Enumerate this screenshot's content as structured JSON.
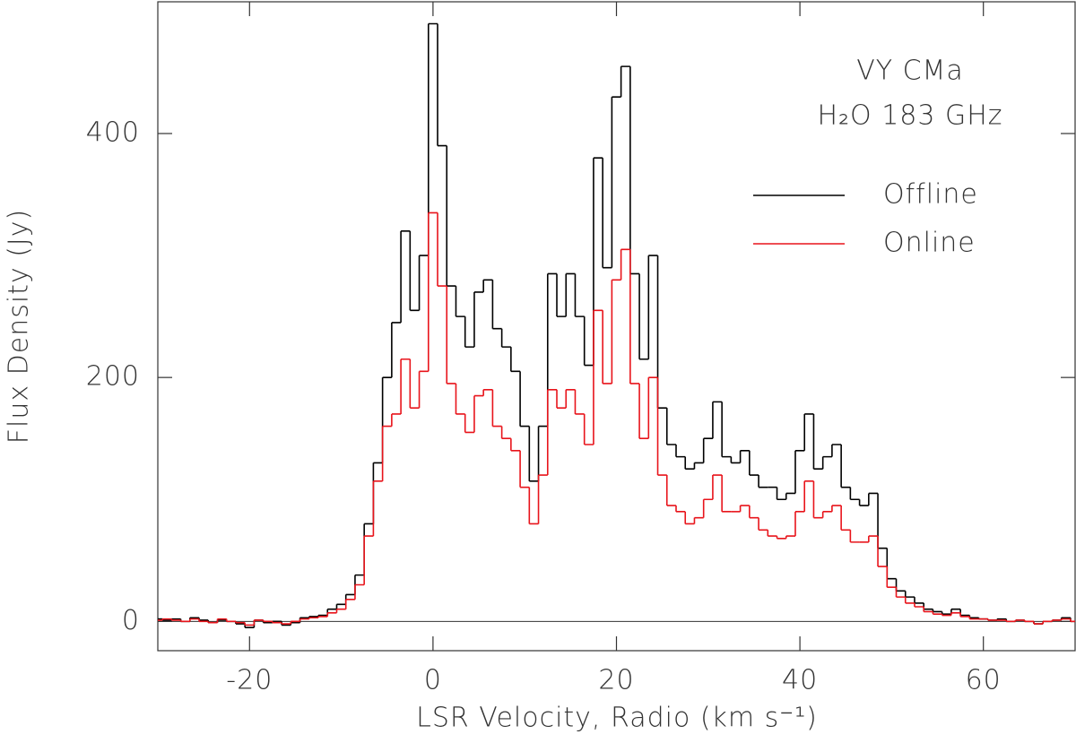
{
  "chart_data": {
    "type": "step",
    "annotations": [
      "VY CMa",
      "H₂O 183 GHz"
    ],
    "xlabel": "LSR Velocity, Radio (km s⁻¹)",
    "ylabel": "Flux Density (Jy)",
    "xlim": [
      -30,
      70
    ],
    "ylim": [
      -24,
      508
    ],
    "xticks": [
      -20,
      0,
      20,
      40,
      60
    ],
    "yticks": [
      0,
      200,
      400
    ],
    "legend": "upper right",
    "zero_line": true,
    "x": [
      -30,
      -29,
      -28,
      -27,
      -26,
      -25,
      -24,
      -23,
      -22,
      -21,
      -20,
      -19,
      -18,
      -17,
      -16,
      -15,
      -14,
      -13,
      -12,
      -11,
      -10,
      -9,
      -8,
      -7,
      -6,
      -5,
      -4,
      -3,
      -2,
      -1,
      0,
      1,
      2,
      3,
      4,
      5,
      6,
      7,
      8,
      9,
      10,
      11,
      12,
      13,
      14,
      15,
      16,
      17,
      18,
      19,
      20,
      21,
      22,
      23,
      24,
      25,
      26,
      27,
      28,
      29,
      30,
      31,
      32,
      33,
      34,
      35,
      36,
      37,
      38,
      39,
      40,
      41,
      42,
      43,
      44,
      45,
      46,
      47,
      48,
      49,
      50,
      51,
      52,
      53,
      54,
      55,
      56,
      57,
      58,
      59,
      60,
      61,
      62,
      63,
      64,
      65,
      66,
      67,
      68,
      69,
      70
    ],
    "series": [
      {
        "name": "Offline",
        "color": "#000000",
        "values": [
          2,
          1,
          2,
          0,
          3,
          1,
          -1,
          1,
          0,
          -2,
          -5,
          1,
          -1,
          0,
          -3,
          -1,
          3,
          4,
          5,
          10,
          14,
          22,
          38,
          80,
          130,
          200,
          245,
          320,
          255,
          300,
          490,
          390,
          275,
          250,
          225,
          270,
          280,
          240,
          225,
          205,
          160,
          115,
          160,
          285,
          250,
          285,
          250,
          210,
          380,
          290,
          430,
          455,
          285,
          215,
          300,
          175,
          145,
          135,
          125,
          130,
          150,
          180,
          135,
          130,
          140,
          120,
          110,
          110,
          100,
          105,
          140,
          170,
          125,
          135,
          145,
          110,
          100,
          95,
          105,
          60,
          35,
          25,
          20,
          15,
          10,
          8,
          6,
          10,
          5,
          3,
          2,
          1,
          2,
          0,
          1,
          0,
          -2,
          0,
          1,
          3,
          0
        ]
      },
      {
        "name": "Online",
        "color": "#e8141b",
        "values": [
          1,
          2,
          1,
          0,
          2,
          0,
          -1,
          2,
          0,
          -1,
          -3,
          1,
          0,
          -1,
          -2,
          0,
          2,
          3,
          4,
          7,
          10,
          18,
          30,
          70,
          115,
          160,
          170,
          215,
          175,
          205,
          335,
          275,
          195,
          170,
          155,
          185,
          190,
          160,
          150,
          140,
          110,
          80,
          120,
          190,
          175,
          190,
          170,
          145,
          255,
          195,
          280,
          305,
          195,
          150,
          200,
          120,
          95,
          90,
          80,
          85,
          100,
          120,
          90,
          90,
          95,
          85,
          75,
          70,
          68,
          70,
          90,
          115,
          85,
          90,
          95,
          75,
          65,
          65,
          70,
          45,
          28,
          20,
          15,
          12,
          8,
          6,
          5,
          7,
          4,
          2,
          2,
          1,
          1,
          0,
          1,
          0,
          -2,
          0,
          1,
          2,
          0
        ]
      }
    ]
  }
}
